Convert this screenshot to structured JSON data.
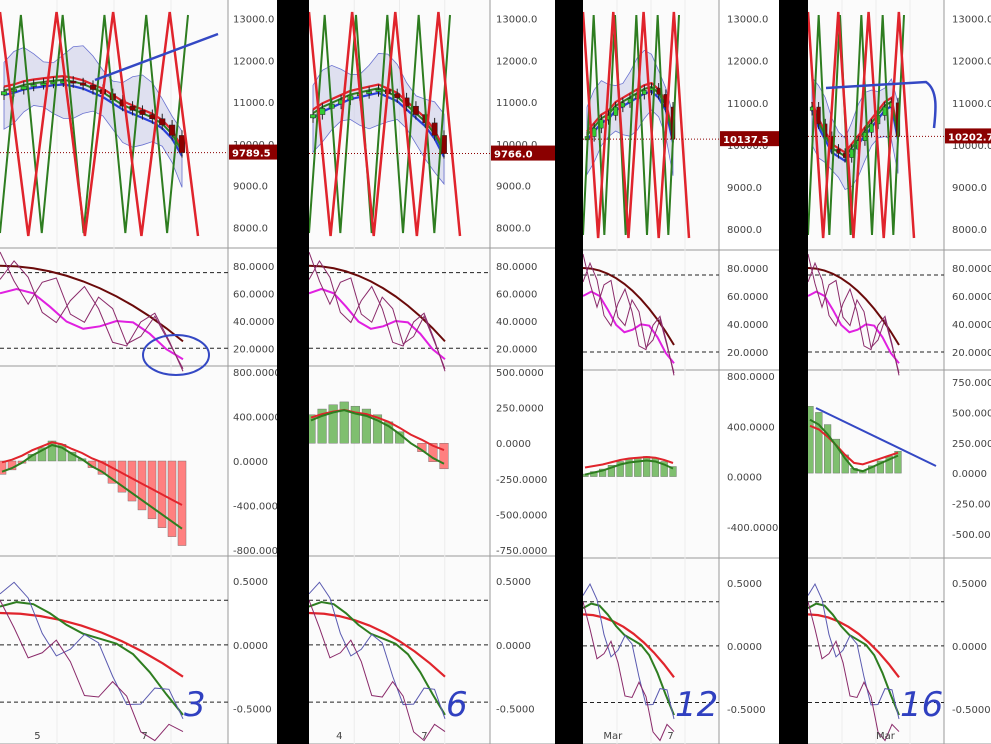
{
  "chart_data": [
    {
      "type": "line",
      "panel_label": "3",
      "x_ticks": [
        "5",
        "7"
      ],
      "price_axis": [
        "13000.0",
        "12000.0",
        "11000.0",
        "10000.0",
        "9000.0",
        "8000.0"
      ],
      "price_tag": "9789.5",
      "osc1_axis": [
        "80.0000",
        "60.0000",
        "40.0000",
        "20.0000"
      ],
      "macd_axis": [
        "800.0000",
        "400.0000",
        "0.0000",
        "-400.0000",
        "-800.0000"
      ],
      "osc3_axis": [
        "0.5000",
        "0.0000",
        "-0.5000"
      ],
      "close": [
        11250,
        11300,
        11380,
        11420,
        11450,
        11480,
        11500,
        11460,
        11400,
        11300,
        11200,
        11050,
        10900,
        10800,
        10700,
        10600,
        10450,
        10200,
        9789.5
      ],
      "macd_hist": [
        -120,
        -80,
        -20,
        60,
        120,
        180,
        150,
        80,
        20,
        -60,
        -120,
        -200,
        -280,
        -360,
        -440,
        -520,
        -600,
        -680,
        -760
      ]
    },
    {
      "type": "line",
      "panel_label": "6",
      "x_ticks": [
        "4",
        "7"
      ],
      "price_axis": [
        "13000.0",
        "12000.0",
        "11000.0",
        "10000.0",
        "9000.0",
        "8000.0"
      ],
      "price_tag": "9766.0",
      "osc1_axis": [
        "80.0000",
        "60.0000",
        "40.0000",
        "20.0000"
      ],
      "macd_axis": [
        "500.0000",
        "250.0000",
        "0.0000",
        "-250.0000",
        "-500.0000",
        "-750.0000"
      ],
      "osc3_axis": [
        "0.5000",
        "0.0000",
        "-0.5000"
      ],
      "close": [
        10700,
        10850,
        10950,
        11050,
        11150,
        11200,
        11250,
        11300,
        11200,
        11100,
        10900,
        10700,
        10500,
        10200,
        9766
      ],
      "macd_hist": [
        200,
        240,
        270,
        290,
        260,
        240,
        200,
        150,
        80,
        0,
        -60,
        -130,
        -180
      ]
    },
    {
      "type": "line",
      "panel_label": "12",
      "x_ticks": [
        "Mar",
        "7"
      ],
      "price_axis": [
        "13000.0",
        "12000.0",
        "11000.0",
        "10000.0",
        "9000.0",
        "8000.0"
      ],
      "price_tag": "10137.5",
      "osc1_axis": [
        "80.0000",
        "60.0000",
        "40.0000",
        "20.0000"
      ],
      "macd_axis": [
        "800.0000",
        "400.0000",
        "0.0000",
        "-400.0000"
      ],
      "osc3_axis": [
        "0.5000",
        "0.0000",
        "-0.5000"
      ],
      "close": [
        10200,
        10400,
        10600,
        10700,
        10900,
        11000,
        11100,
        11200,
        11300,
        11350,
        11200,
        10900,
        10137.5
      ],
      "macd_hist": [
        20,
        40,
        60,
        90,
        120,
        140,
        150,
        160,
        150,
        120,
        80
      ]
    },
    {
      "type": "line",
      "panel_label": "16",
      "x_ticks": [
        "Mar"
      ],
      "price_axis": [
        "13000.0",
        "12000.0",
        "11000.0",
        "10000.0",
        "9000.0",
        "8000.0"
      ],
      "price_tag": "10202.7",
      "osc1_axis": [
        "80.0000",
        "60.0000",
        "40.0000",
        "20.0000"
      ],
      "macd_axis": [
        "750.0000",
        "500.0000",
        "250.0000",
        "0.0000",
        "-250.0000",
        "-500.0000"
      ],
      "osc3_axis": [
        "0.5000",
        "0.0000",
        "-0.5000"
      ],
      "close": [
        10900,
        10500,
        10200,
        9900,
        9800,
        9700,
        9900,
        10100,
        10300,
        10500,
        10700,
        10900,
        11000,
        10202.7
      ],
      "macd_hist": [
        550,
        500,
        400,
        280,
        150,
        40,
        20,
        60,
        100,
        140,
        180
      ]
    }
  ],
  "colors": {
    "panel_bg": "#fbfbfb",
    "divider": "#000000",
    "tag_bg": "#8b0000",
    "green": "#2e7d20",
    "red": "#e0242c",
    "blue": "#2a3fd8",
    "purple": "#8a2a6a",
    "magenta": "#e020e0",
    "hand_ink": "#3448c4"
  }
}
